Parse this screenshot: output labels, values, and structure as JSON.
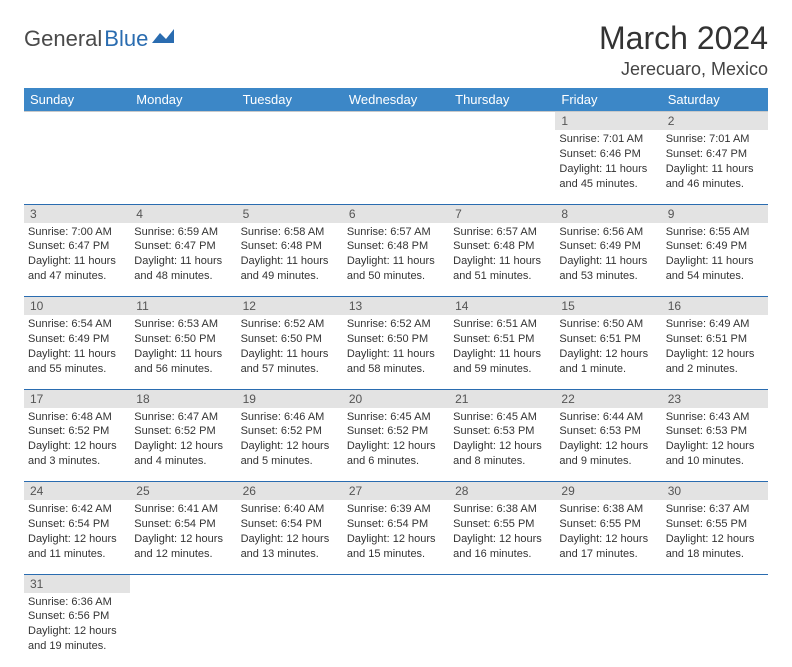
{
  "logo": {
    "part1": "General",
    "part2": "Blue"
  },
  "title": "March 2024",
  "location": "Jerecuaro, Mexico",
  "colors": {
    "header_bg": "#3c87c7",
    "header_text": "#ffffff",
    "daynum_bg": "#e3e3e3",
    "border": "#2a6cb0",
    "logo_blue": "#2a6cb0",
    "logo_gray": "#4a4a4a"
  },
  "font": {
    "title_size": 32,
    "location_size": 18,
    "dayhead_size": 13,
    "body_size": 11
  },
  "day_headers": [
    "Sunday",
    "Monday",
    "Tuesday",
    "Wednesday",
    "Thursday",
    "Friday",
    "Saturday"
  ],
  "weeks": [
    [
      null,
      null,
      null,
      null,
      null,
      {
        "n": "1",
        "sunrise": "7:01 AM",
        "sunset": "6:46 PM",
        "daylight": "11 hours and 45 minutes."
      },
      {
        "n": "2",
        "sunrise": "7:01 AM",
        "sunset": "6:47 PM",
        "daylight": "11 hours and 46 minutes."
      }
    ],
    [
      {
        "n": "3",
        "sunrise": "7:00 AM",
        "sunset": "6:47 PM",
        "daylight": "11 hours and 47 minutes."
      },
      {
        "n": "4",
        "sunrise": "6:59 AM",
        "sunset": "6:47 PM",
        "daylight": "11 hours and 48 minutes."
      },
      {
        "n": "5",
        "sunrise": "6:58 AM",
        "sunset": "6:48 PM",
        "daylight": "11 hours and 49 minutes."
      },
      {
        "n": "6",
        "sunrise": "6:57 AM",
        "sunset": "6:48 PM",
        "daylight": "11 hours and 50 minutes."
      },
      {
        "n": "7",
        "sunrise": "6:57 AM",
        "sunset": "6:48 PM",
        "daylight": "11 hours and 51 minutes."
      },
      {
        "n": "8",
        "sunrise": "6:56 AM",
        "sunset": "6:49 PM",
        "daylight": "11 hours and 53 minutes."
      },
      {
        "n": "9",
        "sunrise": "6:55 AM",
        "sunset": "6:49 PM",
        "daylight": "11 hours and 54 minutes."
      }
    ],
    [
      {
        "n": "10",
        "sunrise": "6:54 AM",
        "sunset": "6:49 PM",
        "daylight": "11 hours and 55 minutes."
      },
      {
        "n": "11",
        "sunrise": "6:53 AM",
        "sunset": "6:50 PM",
        "daylight": "11 hours and 56 minutes."
      },
      {
        "n": "12",
        "sunrise": "6:52 AM",
        "sunset": "6:50 PM",
        "daylight": "11 hours and 57 minutes."
      },
      {
        "n": "13",
        "sunrise": "6:52 AM",
        "sunset": "6:50 PM",
        "daylight": "11 hours and 58 minutes."
      },
      {
        "n": "14",
        "sunrise": "6:51 AM",
        "sunset": "6:51 PM",
        "daylight": "11 hours and 59 minutes."
      },
      {
        "n": "15",
        "sunrise": "6:50 AM",
        "sunset": "6:51 PM",
        "daylight": "12 hours and 1 minute."
      },
      {
        "n": "16",
        "sunrise": "6:49 AM",
        "sunset": "6:51 PM",
        "daylight": "12 hours and 2 minutes."
      }
    ],
    [
      {
        "n": "17",
        "sunrise": "6:48 AM",
        "sunset": "6:52 PM",
        "daylight": "12 hours and 3 minutes."
      },
      {
        "n": "18",
        "sunrise": "6:47 AM",
        "sunset": "6:52 PM",
        "daylight": "12 hours and 4 minutes."
      },
      {
        "n": "19",
        "sunrise": "6:46 AM",
        "sunset": "6:52 PM",
        "daylight": "12 hours and 5 minutes."
      },
      {
        "n": "20",
        "sunrise": "6:45 AM",
        "sunset": "6:52 PM",
        "daylight": "12 hours and 6 minutes."
      },
      {
        "n": "21",
        "sunrise": "6:45 AM",
        "sunset": "6:53 PM",
        "daylight": "12 hours and 8 minutes."
      },
      {
        "n": "22",
        "sunrise": "6:44 AM",
        "sunset": "6:53 PM",
        "daylight": "12 hours and 9 minutes."
      },
      {
        "n": "23",
        "sunrise": "6:43 AM",
        "sunset": "6:53 PM",
        "daylight": "12 hours and 10 minutes."
      }
    ],
    [
      {
        "n": "24",
        "sunrise": "6:42 AM",
        "sunset": "6:54 PM",
        "daylight": "12 hours and 11 minutes."
      },
      {
        "n": "25",
        "sunrise": "6:41 AM",
        "sunset": "6:54 PM",
        "daylight": "12 hours and 12 minutes."
      },
      {
        "n": "26",
        "sunrise": "6:40 AM",
        "sunset": "6:54 PM",
        "daylight": "12 hours and 13 minutes."
      },
      {
        "n": "27",
        "sunrise": "6:39 AM",
        "sunset": "6:54 PM",
        "daylight": "12 hours and 15 minutes."
      },
      {
        "n": "28",
        "sunrise": "6:38 AM",
        "sunset": "6:55 PM",
        "daylight": "12 hours and 16 minutes."
      },
      {
        "n": "29",
        "sunrise": "6:38 AM",
        "sunset": "6:55 PM",
        "daylight": "12 hours and 17 minutes."
      },
      {
        "n": "30",
        "sunrise": "6:37 AM",
        "sunset": "6:55 PM",
        "daylight": "12 hours and 18 minutes."
      }
    ],
    [
      {
        "n": "31",
        "sunrise": "6:36 AM",
        "sunset": "6:56 PM",
        "daylight": "12 hours and 19 minutes."
      },
      null,
      null,
      null,
      null,
      null,
      null
    ]
  ],
  "labels": {
    "sunrise_prefix": "Sunrise: ",
    "sunset_prefix": "Sunset: ",
    "daylight_prefix": "Daylight: "
  }
}
